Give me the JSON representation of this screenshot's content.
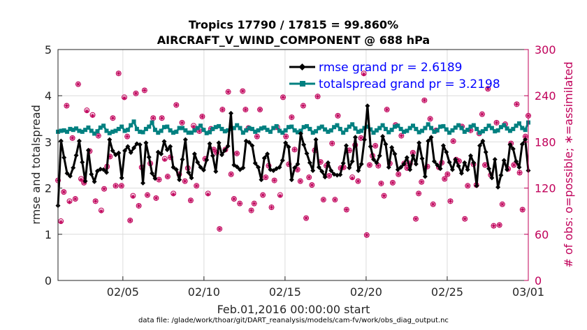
{
  "chart_data": {
    "type": "line",
    "title_line1": "Tropics 17790 / 17815 = 99.860%",
    "title_line2": "AIRCRAFT_V_WIND_COMPONENT @ 688 hPa",
    "xlabel": "Feb.01,2016 00:00:00 start",
    "ylabel_left": "rmse and totalspread",
    "ylabel_right": "# of obs: o=possible; ∗=assimilated",
    "footnote": "data file: /glade/work/thoar/git/DART_reanalysis/models/cam-fv/work/obs_diag_output.nc",
    "xlim": [
      1,
      30
    ],
    "ylim_left": [
      0,
      5
    ],
    "ylim_right": [
      0,
      300
    ],
    "x_ticks": [
      {
        "value": 5,
        "label": "02/05"
      },
      {
        "value": 10,
        "label": "02/10"
      },
      {
        "value": 15,
        "label": "02/15"
      },
      {
        "value": 20,
        "label": "02/20"
      },
      {
        "value": 25,
        "label": "02/25"
      },
      {
        "value": 30,
        "label": "03/01"
      }
    ],
    "y_ticks_left": [
      0,
      1,
      2,
      3,
      4,
      5
    ],
    "y_ticks_right": [
      0,
      60,
      120,
      180,
      240,
      300
    ],
    "grid": true,
    "legend_position": "top-right",
    "series": [
      {
        "name": "rmse grand pr = 2.6189",
        "axis": "left",
        "color": "#000000",
        "marker": "diamond",
        "values": [
          1.62,
          3.02,
          2.66,
          2.32,
          2.26,
          2.44,
          2.71,
          3.02,
          2.56,
          2.15,
          2.82,
          2.3,
          2.14,
          2.37,
          2.41,
          2.4,
          2.34,
          3.05,
          2.81,
          2.72,
          2.76,
          2.22,
          2.81,
          2.9,
          2.77,
          2.87,
          2.96,
          2.94,
          2.11,
          2.98,
          2.67,
          2.32,
          2.21,
          2.78,
          2.74,
          3.01,
          2.83,
          2.9,
          2.45,
          2.4,
          2.18,
          2.62,
          3.05,
          2.34,
          2.22,
          2.74,
          2.56,
          2.45,
          2.39,
          2.61,
          2.96,
          2.7,
          2.36,
          2.98,
          2.72,
          2.82,
          2.91,
          3.62,
          2.5,
          2.46,
          2.4,
          2.44,
          3.02,
          2.99,
          2.92,
          2.54,
          2.45,
          2.18,
          2.65,
          2.74,
          2.4,
          2.38,
          2.42,
          2.45,
          2.6,
          2.98,
          2.89,
          2.18,
          2.44,
          2.52,
          3.18,
          2.94,
          2.75,
          2.55,
          2.38,
          3.05,
          2.45,
          2.36,
          2.24,
          2.55,
          2.38,
          2.3,
          2.28,
          2.29,
          2.54,
          2.92,
          2.44,
          2.58,
          3.1,
          2.38,
          2.52,
          3.05,
          3.78,
          2.9,
          2.62,
          2.55,
          2.7,
          3.12,
          2.95,
          2.45,
          2.88,
          2.74,
          2.4,
          2.45,
          2.52,
          2.66,
          2.4,
          2.7,
          2.52,
          2.98,
          2.64,
          2.25,
          3.02,
          3.1,
          2.58,
          2.5,
          2.42,
          2.92,
          2.78,
          2.56,
          2.4,
          2.62,
          2.48,
          2.32,
          2.55,
          2.4,
          2.7,
          2.55,
          2.05,
          2.92,
          3.02,
          2.78,
          2.42,
          2.22,
          2.62,
          2.02,
          2.28,
          2.6,
          2.4,
          2.94,
          2.85,
          2.58,
          2.45,
          2.95,
          3.05,
          2.38
        ]
      },
      {
        "name": "totalspread grand pr = 3.2198",
        "axis": "left",
        "color": "#008080",
        "marker": "square",
        "values": [
          3.22,
          3.24,
          3.25,
          3.22,
          3.28,
          3.26,
          3.29,
          3.24,
          3.22,
          3.26,
          3.31,
          3.24,
          3.18,
          3.23,
          3.31,
          3.35,
          3.24,
          3.19,
          3.22,
          3.24,
          3.28,
          3.33,
          3.24,
          3.26,
          3.36,
          3.44,
          3.28,
          3.22,
          3.21,
          3.28,
          3.33,
          3.42,
          3.26,
          3.2,
          3.24,
          3.32,
          3.33,
          3.25,
          3.2,
          3.22,
          3.3,
          3.3,
          3.25,
          3.2,
          3.2,
          3.25,
          3.3,
          3.35,
          3.26,
          3.19,
          3.21,
          3.28,
          3.32,
          3.34,
          3.28,
          3.23,
          3.25,
          3.28,
          3.3,
          3.36,
          3.3,
          3.2,
          3.25,
          3.3,
          3.28,
          3.22,
          3.25,
          3.29,
          3.31,
          3.26,
          3.22,
          3.3,
          3.34,
          3.24,
          3.2,
          3.25,
          3.32,
          3.33,
          3.25,
          3.21,
          3.24,
          3.32,
          3.34,
          3.28,
          3.2,
          3.23,
          3.3,
          3.33,
          3.27,
          3.22,
          3.25,
          3.32,
          3.36,
          3.28,
          3.2,
          3.26,
          3.33,
          3.38,
          3.29,
          3.22,
          3.24,
          3.3,
          3.33,
          3.27,
          3.2,
          3.25,
          3.3,
          3.36,
          3.28,
          3.21,
          3.26,
          3.33,
          3.35,
          3.28,
          3.22,
          3.24,
          3.3,
          3.35,
          3.28,
          3.21,
          3.24,
          3.3,
          3.38,
          3.3,
          3.22,
          3.25,
          3.33,
          3.34,
          3.27,
          3.2,
          3.25,
          3.31,
          3.36,
          3.3,
          3.22,
          3.26,
          3.33,
          3.36,
          3.28,
          3.2,
          3.23,
          3.28,
          3.35,
          3.3,
          3.23,
          3.25,
          3.32,
          3.36,
          3.29,
          3.24,
          3.28,
          3.35,
          3.4,
          3.3,
          3.26,
          3.42
        ]
      },
      {
        "name": "obs possible",
        "axis": "right",
        "color": "#c0005a",
        "marker": "circle",
        "values": [
          130,
          77,
          115,
          227,
          103,
          185,
          106,
          255,
          132,
          127,
          221,
          168,
          215,
          103,
          188,
          91,
          119,
          148,
          161,
          211,
          123,
          269,
          123,
          238,
          187,
          78,
          110,
          243,
          97,
          147,
          247,
          111,
          152,
          211,
          107,
          131,
          211,
          158,
          135,
          160,
          113,
          228,
          138,
          205,
          129,
          146,
          104,
          201,
          123,
          194,
          213,
          158,
          113,
          197,
          170,
          166,
          67,
          222,
          170,
          245,
          138,
          106,
          165,
          100,
          246,
          222,
          198,
          91,
          100,
          187,
          222,
          111,
          134,
          149,
          95,
          130,
          199,
          111,
          238,
          187,
          151,
          212,
          170,
          144,
          129,
          227,
          81,
          134,
          124,
          169,
          239,
          154,
          105,
          149,
          136,
          178,
          105,
          214,
          146,
          147,
          92,
          169,
          134,
          176,
          129,
          185,
          269,
          59,
          150,
          162,
          175,
          149,
          126,
          110,
          222,
          152,
          127,
          202,
          138,
          188,
          152,
          146,
          152,
          166,
          80,
          113,
          128,
          234,
          148,
          210,
          99,
          195,
          147,
          153,
          132,
          138,
          103,
          181,
          157,
          155,
          200,
          80,
          123,
          195,
          151,
          124,
          191,
          216,
          150,
          249,
          137,
          71,
          205,
          72,
          99,
          203,
          145,
          178,
          150,
          229,
          140,
          92,
          187,
          214
        ]
      },
      {
        "name": "obs assimilated",
        "axis": "right",
        "color": "#c0005a",
        "marker": "asterisk",
        "values": [
          130,
          76,
          115,
          227,
          102,
          185,
          106,
          255,
          131,
          127,
          220,
          168,
          214,
          103,
          188,
          90,
          119,
          148,
          161,
          211,
          123,
          269,
          123,
          237,
          187,
          78,
          109,
          243,
          97,
          147,
          247,
          111,
          152,
          211,
          107,
          131,
          211,
          157,
          135,
          160,
          112,
          228,
          138,
          205,
          129,
          146,
          104,
          200,
          123,
          194,
          213,
          158,
          112,
          197,
          170,
          166,
          67,
          222,
          170,
          245,
          138,
          106,
          165,
          100,
          246,
          222,
          198,
          91,
          100,
          187,
          222,
          111,
          134,
          149,
          95,
          130,
          198,
          110,
          238,
          187,
          151,
          212,
          170,
          144,
          129,
          227,
          81,
          134,
          124,
          169,
          239,
          154,
          105,
          149,
          136,
          178,
          105,
          214,
          146,
          147,
          92,
          169,
          133,
          176,
          129,
          185,
          268,
          59,
          150,
          162,
          175,
          149,
          126,
          110,
          222,
          152,
          127,
          202,
          138,
          188,
          152,
          146,
          152,
          166,
          80,
          113,
          128,
          234,
          148,
          210,
          99,
          195,
          147,
          153,
          132,
          138,
          103,
          181,
          157,
          155,
          200,
          80,
          123,
          195,
          151,
          124,
          191,
          216,
          150,
          249,
          137,
          71,
          205,
          72,
          99,
          203,
          145,
          178,
          150,
          229,
          140,
          92,
          187,
          214
        ]
      }
    ]
  }
}
